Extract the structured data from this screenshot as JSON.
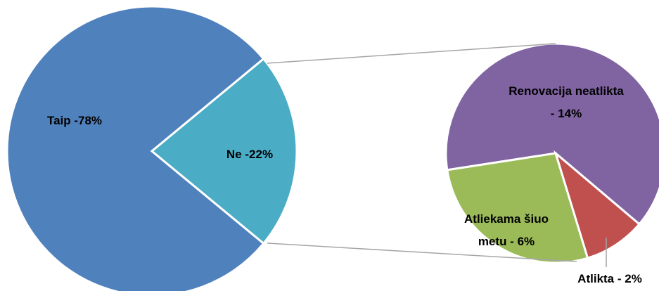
{
  "chart_data": [
    {
      "type": "pie",
      "values": [
        78,
        22
      ],
      "value_labels": [
        "Taip -78%",
        "Ne -22%"
      ],
      "colors": [
        "#4f81bd",
        "#4bacc6"
      ]
    },
    {
      "type": "pie",
      "values": [
        14,
        2,
        6
      ],
      "value_labels": [
        "Renovacija neatlikta - 14%",
        "Atlikta - 2%",
        "Atliekama šiuo metu - 6%"
      ],
      "colors": [
        "#8064a2",
        "#c0504d",
        "#9bbb59"
      ]
    }
  ]
}
